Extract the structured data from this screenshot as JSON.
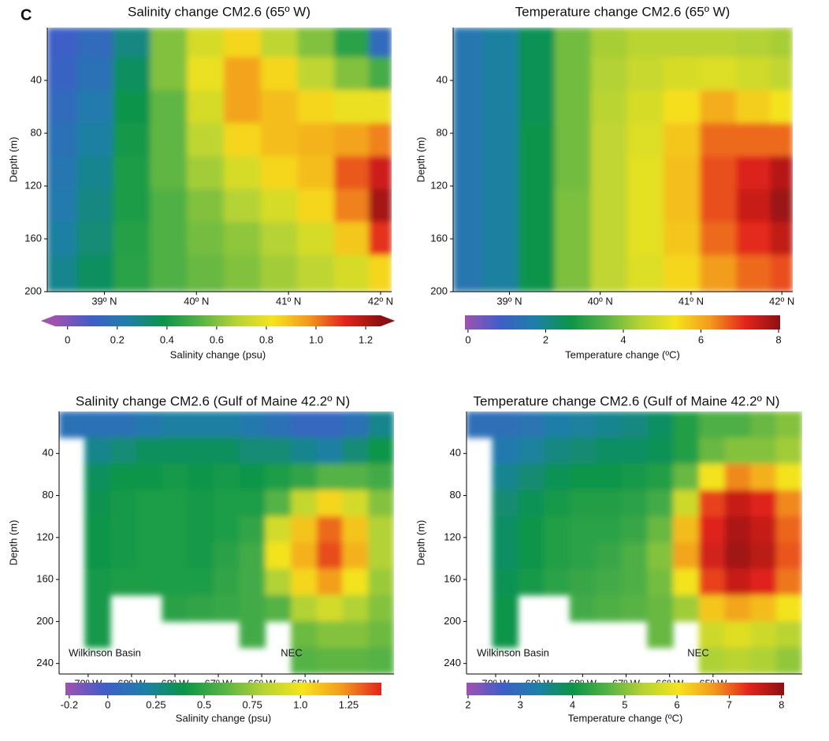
{
  "chart_data": [
    {
      "type": "heatmap",
      "panel_label": "C",
      "title": "Salinity change CM2.6 (65º W)",
      "ylabel": "Depth (m)",
      "xlim": [
        38.38,
        42.12
      ],
      "ylim": [
        0,
        200
      ],
      "xticks": [
        {
          "value": 39,
          "label": "39º N"
        },
        {
          "value": 40,
          "label": "40º N"
        },
        {
          "value": 41,
          "label": "41º N"
        },
        {
          "value": 42,
          "label": "42º N"
        }
      ],
      "yticks": [
        40,
        80,
        120,
        160,
        200
      ],
      "x": [
        38.5,
        38.9,
        39.3,
        39.7,
        40.1,
        40.5,
        40.9,
        41.3,
        41.7,
        42.05
      ],
      "y": [
        10,
        35,
        60,
        85,
        110,
        135,
        160,
        185
      ],
      "z": [
        [
          0.1,
          0.15,
          0.3,
          0.6,
          0.75,
          0.85,
          0.7,
          0.6,
          0.45,
          0.15
        ],
        [
          0.12,
          0.18,
          0.35,
          0.6,
          0.8,
          0.95,
          0.85,
          0.7,
          0.6,
          0.5
        ],
        [
          0.15,
          0.22,
          0.38,
          0.55,
          0.75,
          0.95,
          0.9,
          0.85,
          0.8,
          0.8
        ],
        [
          0.18,
          0.25,
          0.4,
          0.55,
          0.7,
          0.85,
          0.9,
          0.92,
          0.95,
          1.0
        ],
        [
          0.2,
          0.28,
          0.42,
          0.55,
          0.65,
          0.75,
          0.85,
          0.9,
          1.05,
          1.15
        ],
        [
          0.22,
          0.3,
          0.42,
          0.52,
          0.6,
          0.68,
          0.75,
          0.85,
          1.0,
          1.22
        ],
        [
          0.25,
          0.32,
          0.44,
          0.52,
          0.58,
          0.62,
          0.68,
          0.75,
          0.88,
          1.1
        ],
        [
          0.28,
          0.35,
          0.45,
          0.52,
          0.56,
          0.6,
          0.65,
          0.7,
          0.75,
          0.85
        ]
      ],
      "colorbar": {
        "label": "Salinity change (psu)",
        "lim": [
          -0.05,
          1.26
        ],
        "extend": true,
        "ticks": [
          0,
          0.2,
          0.4,
          0.6,
          0.8,
          {
            "value": 1,
            "label": "1.0"
          },
          1.2
        ],
        "colors": [
          "#a052b0",
          "#3f5ec8",
          "#1e7fa8",
          "#0b9548",
          "#55b245",
          "#b5d334",
          "#f5e41c",
          "#f39a1c",
          "#e3241c",
          "#8e0f12"
        ]
      }
    },
    {
      "type": "heatmap",
      "title": "Temperature change CM2.6 (65º W)",
      "ylabel": "Depth (m)",
      "xlim": [
        38.38,
        42.12
      ],
      "ylim": [
        0,
        200
      ],
      "xticks": [
        {
          "value": 39,
          "label": "39º N"
        },
        {
          "value": 40,
          "label": "40º N"
        },
        {
          "value": 41,
          "label": "41º N"
        },
        {
          "value": 42,
          "label": "42º N"
        }
      ],
      "yticks": [
        40,
        80,
        120,
        160,
        200
      ],
      "x": [
        38.5,
        38.9,
        39.3,
        39.7,
        40.1,
        40.5,
        40.9,
        41.3,
        41.7,
        42.05
      ],
      "y": [
        10,
        35,
        60,
        85,
        110,
        135,
        160,
        185
      ],
      "z": [
        [
          1.5,
          1.8,
          2.5,
          3.8,
          4.3,
          4.5,
          4.5,
          4.5,
          4.4,
          4.3
        ],
        [
          1.5,
          1.8,
          2.5,
          3.8,
          4.4,
          4.7,
          4.9,
          5.0,
          4.8,
          4.6
        ],
        [
          1.5,
          1.8,
          2.5,
          3.8,
          4.5,
          4.9,
          5.4,
          6.0,
          5.6,
          5.3
        ],
        [
          1.5,
          1.8,
          2.6,
          3.8,
          4.6,
          5.0,
          5.7,
          6.6,
          6.6,
          6.6
        ],
        [
          1.5,
          1.8,
          2.6,
          3.8,
          4.6,
          5.1,
          5.8,
          6.8,
          7.2,
          7.6
        ],
        [
          1.5,
          1.8,
          2.6,
          3.9,
          4.6,
          5.1,
          5.8,
          6.8,
          7.4,
          7.9
        ],
        [
          1.5,
          1.8,
          2.6,
          3.9,
          4.6,
          5.1,
          5.7,
          6.6,
          7.1,
          7.5
        ],
        [
          1.5,
          1.8,
          2.6,
          3.9,
          4.6,
          5.0,
          5.5,
          6.2,
          6.6,
          6.8
        ]
      ],
      "colorbar": {
        "label": "Temperature change (ºC)",
        "lim": [
          -0.08,
          8.04
        ],
        "extend": false,
        "ticks": [
          0,
          2,
          4,
          6,
          8
        ],
        "colors": [
          "#a052b0",
          "#3f5ec8",
          "#1e7fa8",
          "#0b9548",
          "#55b245",
          "#b5d334",
          "#f5e41c",
          "#f39a1c",
          "#e3241c",
          "#8e0f12"
        ]
      }
    },
    {
      "type": "heatmap",
      "title": "Salinity change CM2.6 (Gulf of Maine 42.2º N)",
      "ylabel": "Depth (m)",
      "xlim": [
        70.67,
        62.95
      ],
      "ylim": [
        0,
        250
      ],
      "xticks": [
        {
          "value": 70,
          "label": "70º W"
        },
        {
          "value": 69,
          "label": "69º W"
        },
        {
          "value": 68,
          "label": "68º W"
        },
        {
          "value": 67,
          "label": "67º W"
        },
        {
          "value": 66,
          "label": "66º W"
        },
        {
          "value": 65,
          "label": "65º W"
        }
      ],
      "yticks": [
        40,
        80,
        120,
        160,
        200,
        240
      ],
      "annotations": [
        "Wilkinson Basin",
        "NEC"
      ],
      "x": [
        70.37,
        69.78,
        69.19,
        68.59,
        68.0,
        67.4,
        66.81,
        66.21,
        65.62,
        65.02,
        64.43,
        63.84,
        63.25
      ],
      "y": [
        12.5,
        37.5,
        62.5,
        87.5,
        112.5,
        137.5,
        162.5,
        187.5,
        212.5,
        237.5
      ],
      "z": [
        [
          0.1,
          0.1,
          0.1,
          0.15,
          0.2,
          0.2,
          0.2,
          0.15,
          0.1,
          0.05,
          0.05,
          0.1,
          0.25
        ],
        [
          null,
          0.25,
          0.3,
          0.35,
          0.35,
          0.35,
          0.35,
          0.3,
          0.3,
          0.25,
          0.2,
          0.3,
          0.4
        ],
        [
          null,
          0.35,
          0.4,
          0.4,
          0.42,
          0.4,
          0.42,
          0.4,
          0.45,
          0.5,
          0.6,
          0.6,
          0.55
        ],
        [
          null,
          0.38,
          0.42,
          0.45,
          0.45,
          0.42,
          0.45,
          0.45,
          0.6,
          0.85,
          1.05,
          0.9,
          0.7
        ],
        [
          null,
          0.4,
          0.42,
          0.45,
          0.45,
          0.42,
          0.45,
          0.5,
          0.9,
          1.1,
          1.3,
          1.1,
          0.8
        ],
        [
          null,
          0.4,
          0.42,
          0.45,
          0.45,
          0.42,
          0.48,
          0.55,
          1.0,
          1.15,
          1.35,
          1.15,
          0.8
        ],
        [
          null,
          0.42,
          0.45,
          0.45,
          0.45,
          0.45,
          0.5,
          0.55,
          0.8,
          1.05,
          1.2,
          1.0,
          0.75
        ],
        [
          null,
          0.42,
          null,
          null,
          0.48,
          0.5,
          0.52,
          0.55,
          0.6,
          0.8,
          0.9,
          0.8,
          0.7
        ],
        [
          null,
          0.42,
          null,
          null,
          null,
          null,
          null,
          0.55,
          null,
          0.65,
          0.7,
          0.7,
          0.65
        ],
        [
          null,
          null,
          null,
          null,
          null,
          null,
          null,
          null,
          null,
          0.6,
          0.62,
          0.62,
          0.6
        ]
      ],
      "colorbar": {
        "label": "Salinity change (psu)",
        "lim": [
          -0.22,
          1.42
        ],
        "extend": false,
        "ticks": [
          -0.2,
          0,
          0.25,
          0.5,
          0.75,
          {
            "value": 1,
            "label": "1.0"
          },
          1.25
        ],
        "colors": [
          "#a052b0",
          "#3f5ec8",
          "#1e7fa8",
          "#0b9548",
          "#55b245",
          "#b5d334",
          "#f5e41c",
          "#f39a1c",
          "#e3241c"
        ]
      }
    },
    {
      "type": "heatmap",
      "title": "Temperature change CM2.6 (Gulf of Maine 42.2º N)",
      "ylabel": "Depth (m)",
      "xlim": [
        70.67,
        62.95
      ],
      "ylim": [
        0,
        250
      ],
      "xticks": [
        {
          "value": 70,
          "label": "70º W"
        },
        {
          "value": 69,
          "label": "69º W"
        },
        {
          "value": 68,
          "label": "68º W"
        },
        {
          "value": 67,
          "label": "67º W"
        },
        {
          "value": 66,
          "label": "66º W"
        },
        {
          "value": 65,
          "label": "65º W"
        }
      ],
      "yticks": [
        40,
        80,
        120,
        160,
        200,
        240
      ],
      "annotations": [
        "Wilkinson Basin",
        "NEC"
      ],
      "x": [
        70.37,
        69.78,
        69.19,
        68.59,
        68.0,
        67.4,
        66.81,
        66.21,
        65.62,
        65.02,
        64.43,
        63.84,
        63.25
      ],
      "y": [
        12.5,
        37.5,
        62.5,
        87.5,
        112.5,
        137.5,
        162.5,
        187.5,
        212.5,
        237.5
      ],
      "z": [
        [
          3,
          3,
          3.1,
          3.3,
          3.4,
          3.5,
          3.6,
          3.8,
          4.2,
          4.6,
          4.6,
          4.8,
          5.0
        ],
        [
          null,
          3.2,
          3.4,
          3.6,
          3.7,
          3.8,
          3.8,
          3.9,
          4.2,
          4.8,
          5.0,
          5.0,
          5.2
        ],
        [
          null,
          3.5,
          3.7,
          3.9,
          4.0,
          4.0,
          4.1,
          4.2,
          4.8,
          6.0,
          6.8,
          6.5,
          6.0
        ],
        [
          null,
          3.7,
          3.9,
          4.1,
          4.2,
          4.2,
          4.3,
          4.5,
          5.6,
          7.2,
          7.6,
          7.4,
          6.8
        ],
        [
          null,
          3.8,
          4.0,
          4.2,
          4.3,
          4.3,
          4.4,
          4.8,
          6.4,
          7.4,
          7.8,
          7.6,
          7.0
        ],
        [
          null,
          3.8,
          4.0,
          4.2,
          4.3,
          4.4,
          4.6,
          5.0,
          6.6,
          7.5,
          7.9,
          7.7,
          7.1
        ],
        [
          null,
          3.9,
          4.1,
          4.3,
          4.4,
          4.5,
          4.6,
          4.9,
          6.0,
          7.2,
          7.6,
          7.4,
          6.9
        ],
        [
          null,
          4.0,
          null,
          null,
          4.5,
          4.6,
          4.7,
          4.8,
          5.2,
          6.3,
          6.6,
          6.4,
          6.0
        ],
        [
          null,
          4.0,
          null,
          null,
          null,
          null,
          null,
          4.8,
          null,
          5.6,
          5.8,
          5.6,
          5.4
        ],
        [
          null,
          null,
          null,
          null,
          null,
          null,
          null,
          null,
          null,
          5.3,
          5.4,
          5.3,
          5.1
        ]
      ],
      "colorbar": {
        "label": "Temperature change (ºC)",
        "lim": [
          1.97,
          8.05
        ],
        "extend": false,
        "ticks": [
          2,
          3,
          4,
          5,
          6,
          7,
          8
        ],
        "colors": [
          "#a052b0",
          "#3f5ec8",
          "#1e7fa8",
          "#0b9548",
          "#55b245",
          "#b5d334",
          "#f5e41c",
          "#f39a1c",
          "#e3241c",
          "#8e0f12"
        ]
      }
    }
  ]
}
